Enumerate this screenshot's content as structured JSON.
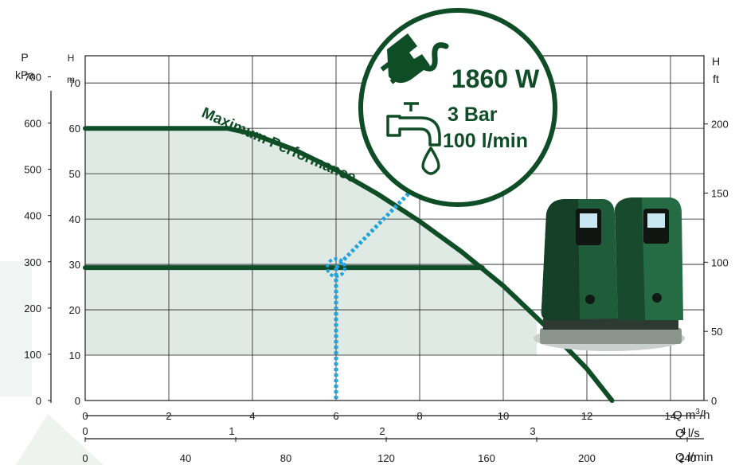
{
  "chart_data": {
    "type": "line",
    "title": "",
    "axes": {
      "x_main": {
        "label": "Q m³/h",
        "unit_main": "Q m",
        "unit_sup": "3",
        "unit_end": "/h",
        "ticks": [
          0,
          2,
          4,
          6,
          8,
          10,
          12,
          14
        ],
        "range": [
          0,
          14.8
        ]
      },
      "x_ls": {
        "label": "Q l/s",
        "ticks": [
          0,
          1,
          2,
          3,
          4
        ]
      },
      "x_lmin": {
        "label": "Q l/min",
        "ticks": [
          0,
          40,
          80,
          120,
          160,
          200,
          240
        ]
      },
      "y_left_kpa": {
        "label_top": "P",
        "label_unit": "kPa",
        "ticks": [
          0,
          100,
          200,
          300,
          400,
          500,
          600,
          700
        ]
      },
      "y_left_m": {
        "label_top": "H",
        "label_unit": "m",
        "ticks": [
          0,
          10,
          20,
          30,
          40,
          50,
          60,
          70
        ],
        "range": [
          0,
          76
        ]
      },
      "y_right_ft": {
        "label_top": "H",
        "label_unit": "ft",
        "ticks": [
          0,
          50,
          100,
          150,
          200
        ]
      }
    },
    "grid": true,
    "series": [
      {
        "name": "Maximum Performance",
        "color": "#0f4d27",
        "points": [
          [
            0,
            60
          ],
          [
            3.4,
            60
          ],
          [
            4,
            58.8
          ],
          [
            5,
            55.3
          ],
          [
            6,
            50.8
          ],
          [
            7,
            45.5
          ],
          [
            8,
            39.5
          ],
          [
            9,
            32.8
          ],
          [
            10,
            25.3
          ],
          [
            11,
            16.5
          ],
          [
            12,
            7
          ],
          [
            12.6,
            0
          ]
        ]
      },
      {
        "name": "",
        "color": "#0f4d27",
        "points": [
          [
            0,
            29.3
          ],
          [
            9.5,
            29.3
          ]
        ]
      }
    ],
    "shaded_area": {
      "color": "#dfe9e3",
      "points": [
        [
          0,
          60
        ],
        [
          3.4,
          60
        ],
        [
          4,
          58.8
        ],
        [
          5,
          55.3
        ],
        [
          6,
          50.8
        ],
        [
          7,
          45.5
        ],
        [
          8,
          39.5
        ],
        [
          9,
          32.8
        ],
        [
          10,
          25.3
        ],
        [
          10.8,
          18.3
        ],
        [
          10.8,
          10
        ],
        [
          0,
          10
        ]
      ]
    },
    "operating_point": {
      "q": 6,
      "h": 29.3,
      "color": "#22a3dc"
    },
    "badge": {
      "power": "1860 W",
      "pressure": "3 Bar",
      "flow": "100 l/min"
    },
    "colors": {
      "curve": "#0f4d27",
      "highlight": "#22a3dc",
      "text": "#1a1a1a"
    }
  }
}
